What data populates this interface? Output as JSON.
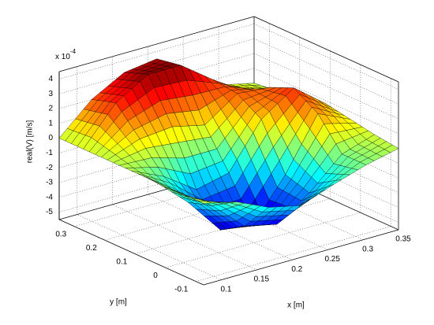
{
  "chart_data": {
    "type": "surface",
    "z_label": "real(V) [m/s]",
    "x_label": "x [m]",
    "y_label": "y [m]",
    "z_multiplier": {
      "base": "x 10",
      "exponent": "-4"
    },
    "x": [
      0.075,
      0.1208,
      0.1667,
      0.2125,
      0.2583,
      0.3042,
      0.35
    ],
    "y": [
      -0.125,
      -0.0458,
      0.0333,
      0.1125,
      0.1917,
      0.2708,
      0.35
    ],
    "z": [
      [
        0,
        -0.5,
        -1.5,
        -2,
        -1.2,
        -0.5,
        0
      ],
      [
        0,
        -1.5,
        -3.5,
        -4,
        -2.5,
        -0.5,
        0.2
      ],
      [
        0,
        -2,
        -4.5,
        -4.8,
        -2,
        1.5,
        0.5
      ],
      [
        0,
        -1,
        -2.5,
        -2,
        1,
        2.5,
        0.8
      ],
      [
        0,
        0.8,
        1,
        0.5,
        2,
        1.8,
        0.5
      ],
      [
        0,
        2.5,
        3.8,
        3.8,
        2.2,
        0.8,
        0.2
      ],
      [
        0,
        2,
        3.2,
        3.5,
        2,
        0.5,
        0
      ]
    ],
    "xlim": [
      0.075,
      0.35
    ],
    "ylim": [
      -0.125,
      0.35
    ],
    "zlim": [
      -5.5,
      4.5
    ],
    "xticks": [
      0.1,
      0.15,
      0.2,
      0.25,
      0.3,
      0.35
    ],
    "yticks": [
      -0.1,
      0,
      0.1,
      0.2,
      0.3
    ],
    "zticks": [
      -5,
      -4,
      -3,
      -2,
      -1,
      0,
      1,
      2,
      3,
      4
    ],
    "grid": true,
    "colormap": "jet"
  }
}
